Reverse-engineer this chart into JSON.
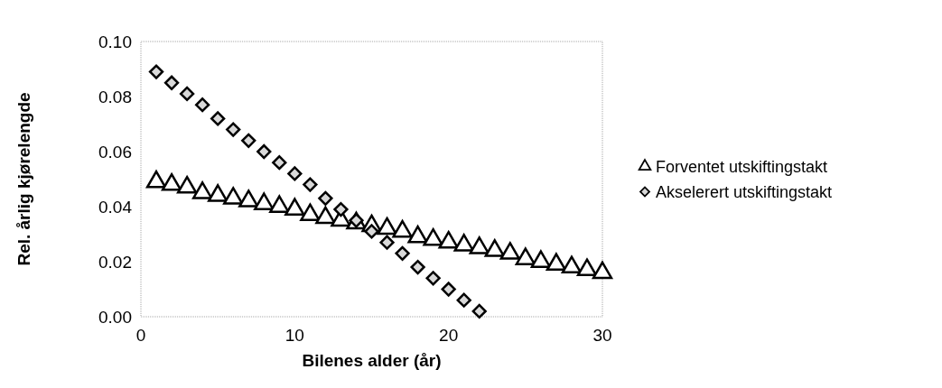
{
  "chart_data": {
    "type": "scatter",
    "xlabel": "Bilenes alder (år)",
    "ylabel": "Rel. årlig kjørelengde",
    "xlim": [
      0,
      30
    ],
    "xticks": [
      0,
      10,
      20,
      30
    ],
    "ylim": [
      0,
      0.1
    ],
    "yticks": [
      {
        "value": 0,
        "label": "0.00"
      },
      {
        "value": 0.02,
        "label": "0.02"
      },
      {
        "value": 0.04,
        "label": "0.04"
      },
      {
        "value": 0.06,
        "label": "0.06"
      },
      {
        "value": 0.08,
        "label": "0.08"
      },
      {
        "value": 0.1,
        "label": "0.10"
      }
    ],
    "grid": false,
    "legend": "right",
    "series": [
      {
        "name": "Forventet utskiftingstakt",
        "color": "#ffffff",
        "marker": "triangle",
        "x": [
          1,
          2,
          3,
          4,
          5,
          6,
          7,
          8,
          9,
          10,
          11,
          12,
          13,
          14,
          15,
          16,
          17,
          18,
          19,
          20,
          21,
          22,
          23,
          24,
          25,
          26,
          27,
          28,
          29,
          30
        ],
        "values": [
          0.049,
          0.048,
          0.047,
          0.045,
          0.044,
          0.043,
          0.042,
          0.041,
          0.04,
          0.039,
          0.037,
          0.036,
          0.035,
          0.034,
          0.033,
          0.032,
          0.031,
          0.029,
          0.028,
          0.027,
          0.026,
          0.025,
          0.024,
          0.023,
          0.021,
          0.02,
          0.019,
          0.018,
          0.017,
          0.016
        ]
      },
      {
        "name": "Akselerert utskiftingstakt",
        "color": "#d9d9d9",
        "marker": "diamond",
        "x": [
          1,
          2,
          3,
          4,
          5,
          6,
          7,
          8,
          9,
          10,
          11,
          12,
          13,
          14,
          15,
          16,
          17,
          18,
          19,
          20,
          21,
          22
        ],
        "values": [
          0.089,
          0.085,
          0.081,
          0.077,
          0.072,
          0.068,
          0.064,
          0.06,
          0.056,
          0.052,
          0.048,
          0.043,
          0.039,
          0.035,
          0.031,
          0.027,
          0.023,
          0.018,
          0.014,
          0.01,
          0.006,
          0.002
        ]
      }
    ]
  }
}
